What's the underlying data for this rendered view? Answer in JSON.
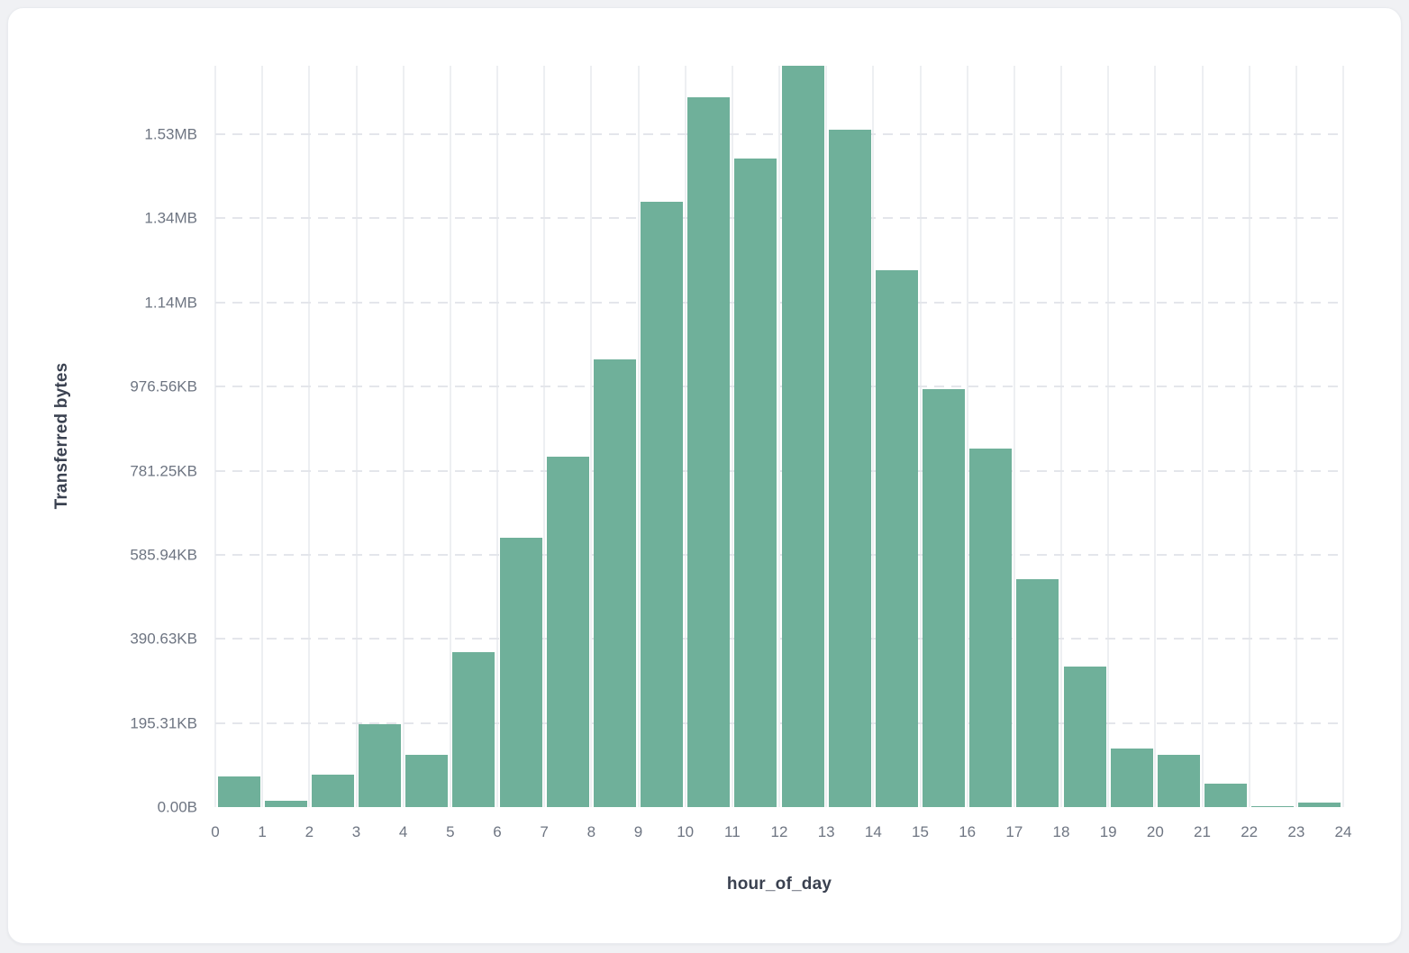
{
  "chart_data": {
    "type": "bar",
    "subtype": "histogram",
    "title": "",
    "xlabel": "hour_of_day",
    "ylabel": "Transferred bytes",
    "bar_color": "#6fb09a",
    "grid": true,
    "legend": null,
    "x_bin_width": 1,
    "x_ticks": [
      0,
      1,
      2,
      3,
      4,
      5,
      6,
      7,
      8,
      9,
      10,
      11,
      12,
      13,
      14,
      15,
      16,
      17,
      18,
      19,
      20,
      21,
      22,
      23,
      24
    ],
    "y_ticks": [
      {
        "label": "0.00B",
        "bytes": 0
      },
      {
        "label": "195.31KB",
        "bytes": 200000
      },
      {
        "label": "390.63KB",
        "bytes": 400000
      },
      {
        "label": "585.94KB",
        "bytes": 600000
      },
      {
        "label": "781.25KB",
        "bytes": 800000
      },
      {
        "label": "976.56KB",
        "bytes": 1000000
      },
      {
        "label": "1.14MB",
        "bytes": 1200000
      },
      {
        "label": "1.34MB",
        "bytes": 1400000
      },
      {
        "label": "1.53MB",
        "bytes": 1600000
      }
    ],
    "y_max_bytes": 1763000,
    "categories_hour": [
      0,
      1,
      2,
      3,
      4,
      5,
      6,
      7,
      8,
      9,
      10,
      11,
      12,
      13,
      14,
      15,
      16,
      17,
      18,
      19,
      20,
      21,
      22,
      23
    ],
    "values_bytes": [
      73000,
      15000,
      77000,
      197000,
      124000,
      368000,
      640000,
      834000,
      1065000,
      1440000,
      1688000,
      1542000,
      1763000,
      1611000,
      1277000,
      995000,
      853000,
      543000,
      334000,
      139000,
      124000,
      56000,
      3000,
      11000
    ]
  },
  "colors": {
    "page_background": "#f0f1f4",
    "card_background": "#ffffff",
    "bar": "#6fb09a",
    "vertical_gridline": "#edeff2",
    "dashed_gridline": "#e4e6eb",
    "tick_text": "#6e7582",
    "axis_title_text": "#3a4150"
  }
}
